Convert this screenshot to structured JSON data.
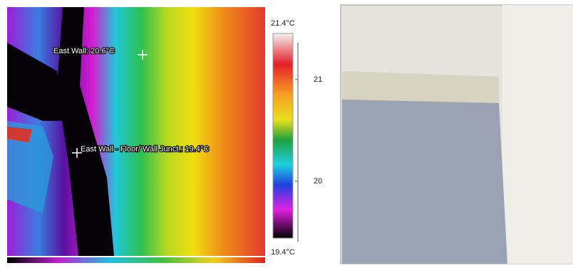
{
  "thermal": {
    "annotations": [
      {
        "label": "East Wall: 20.6°C"
      },
      {
        "label": "East Wall - Floor/ Wall Junct.: 19.4°C"
      }
    ]
  },
  "scale": {
    "max_label": "21.4°C",
    "min_label": "19.4°C",
    "tick_labels": [
      "21",
      "20"
    ]
  }
}
